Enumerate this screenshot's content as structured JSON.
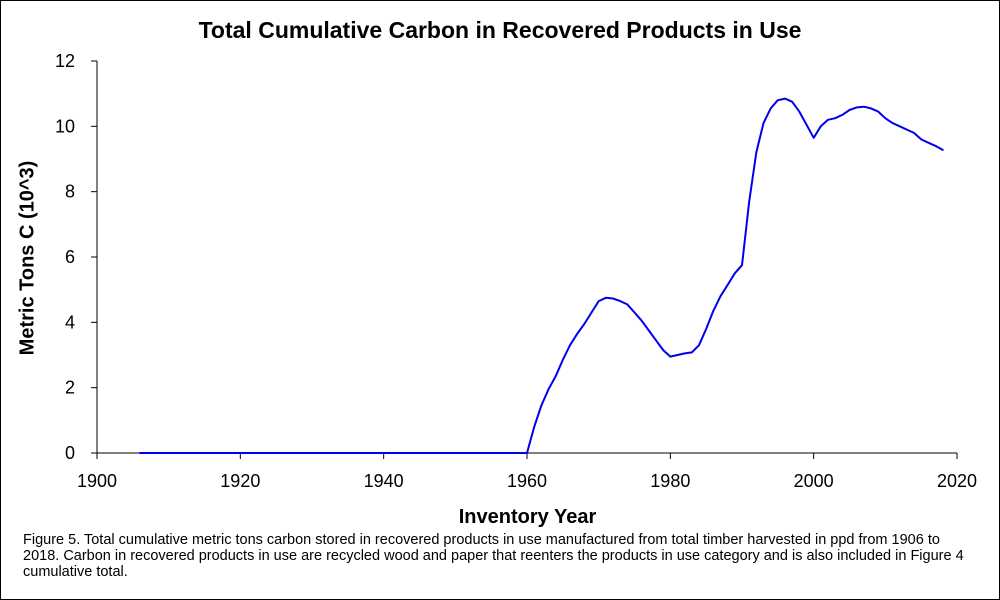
{
  "chart_data": {
    "type": "line",
    "title": "Total Cumulative Carbon in Recovered Products in Use",
    "xlabel": "Inventory Year",
    "ylabel": "Metric Tons C (10^3)",
    "xlim": [
      1900,
      2020
    ],
    "ylim": [
      0,
      12
    ],
    "xticks": [
      1900,
      1920,
      1940,
      1960,
      1980,
      2000,
      2020
    ],
    "yticks": [
      0,
      2,
      4,
      6,
      8,
      10,
      12
    ],
    "grid": false,
    "legend": "none",
    "series": [
      {
        "color": "#0000ee",
        "x": [
          1906,
          1960,
          1961,
          1962,
          1963,
          1964,
          1965,
          1966,
          1967,
          1968,
          1969,
          1970,
          1971,
          1972,
          1973,
          1974,
          1975,
          1976,
          1977,
          1978,
          1979,
          1980,
          1981,
          1982,
          1983,
          1984,
          1985,
          1986,
          1987,
          1988,
          1989,
          1990,
          1991,
          1992,
          1993,
          1994,
          1995,
          1996,
          1997,
          1998,
          1999,
          2000,
          2001,
          2002,
          2003,
          2004,
          2005,
          2006,
          2007,
          2008,
          2009,
          2010,
          2011,
          2012,
          2013,
          2014,
          2015,
          2016,
          2017,
          2018
        ],
        "y": [
          0,
          0,
          0.8,
          1.45,
          1.95,
          2.35,
          2.85,
          3.3,
          3.65,
          3.95,
          4.3,
          4.65,
          4.75,
          4.73,
          4.65,
          4.55,
          4.3,
          4.05,
          3.75,
          3.45,
          3.15,
          2.95,
          3.0,
          3.05,
          3.08,
          3.3,
          3.8,
          4.35,
          4.8,
          5.15,
          5.5,
          5.75,
          7.7,
          9.2,
          10.1,
          10.55,
          10.8,
          10.85,
          10.75,
          10.45,
          10.05,
          9.65,
          10.0,
          10.2,
          10.25,
          10.35,
          10.5,
          10.58,
          10.6,
          10.55,
          10.45,
          10.25,
          10.1,
          10.0,
          9.9,
          9.8,
          9.6,
          9.5,
          9.4,
          9.28
        ]
      }
    ]
  },
  "caption": "Figure 5. Total cumulative metric tons carbon stored in recovered products in use manufactured from total timber harvested in ppd from 1906 to 2018. Carbon in recovered products in use are recycled wood and paper that reenters the products in use category and is also included in Figure 4 cumulative total."
}
